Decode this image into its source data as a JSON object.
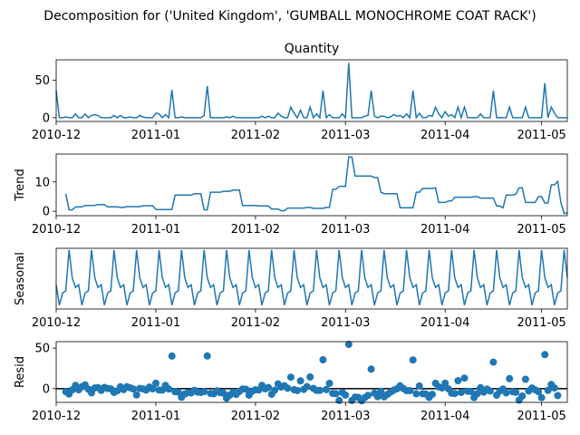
{
  "figure": {
    "suptitle": "Decomposition for ('United Kingdom', 'GUMBALL MONOCHROME COAT RACK')"
  },
  "colors": {
    "line": "#1f77b4",
    "axis": "#000000",
    "background": "#ffffff"
  },
  "chart_data": [
    {
      "type": "line",
      "title": "Quantity",
      "ylabel": "",
      "ylim": [
        -5,
        77
      ],
      "yticks": [
        0,
        50
      ],
      "xlim": [
        "2010-12-01",
        "2011-05-09"
      ],
      "xticks": [
        "2010-12",
        "2011-01",
        "2011-02",
        "2011-03",
        "2011-04",
        "2011-05"
      ],
      "grid": false,
      "series": [
        {
          "x": [],
          "y": []
        }
      ]
    },
    {
      "type": "line",
      "title": "",
      "ylabel": "Trend",
      "ylim": [
        -1.5,
        19.5
      ],
      "yticks": [
        0,
        10
      ],
      "xlim": [
        "2010-12-01",
        "2011-05-09"
      ],
      "xticks": [
        "2010-12",
        "2011-01",
        "2011-02",
        "2011-03",
        "2011-04",
        "2011-05"
      ],
      "grid": false,
      "series": [
        {
          "x": [],
          "y": []
        }
      ]
    },
    {
      "type": "line",
      "title": "",
      "ylabel": "Seasonal",
      "ylim": [
        -4.5,
        6.5
      ],
      "yticks": [],
      "xlim": [
        "2010-12-01",
        "2011-05-09"
      ],
      "xticks": [
        "2010-12",
        "2011-01",
        "2011-02",
        "2011-03",
        "2011-04",
        "2011-05"
      ],
      "grid": false,
      "series": [
        {
          "x": [],
          "y": []
        }
      ]
    },
    {
      "type": "scatter",
      "title": "",
      "ylabel": "Resid",
      "ylim": [
        -17,
        58
      ],
      "yticks": [
        0,
        50
      ],
      "xlim": [
        "2010-12-01",
        "2011-05-09"
      ],
      "xticks": [
        "2010-12",
        "2011-01",
        "2011-02",
        "2011-03",
        "2011-04",
        "2011-05"
      ],
      "grid": false,
      "zero_line": true,
      "series": [
        {
          "x": [],
          "y": []
        }
      ]
    }
  ]
}
